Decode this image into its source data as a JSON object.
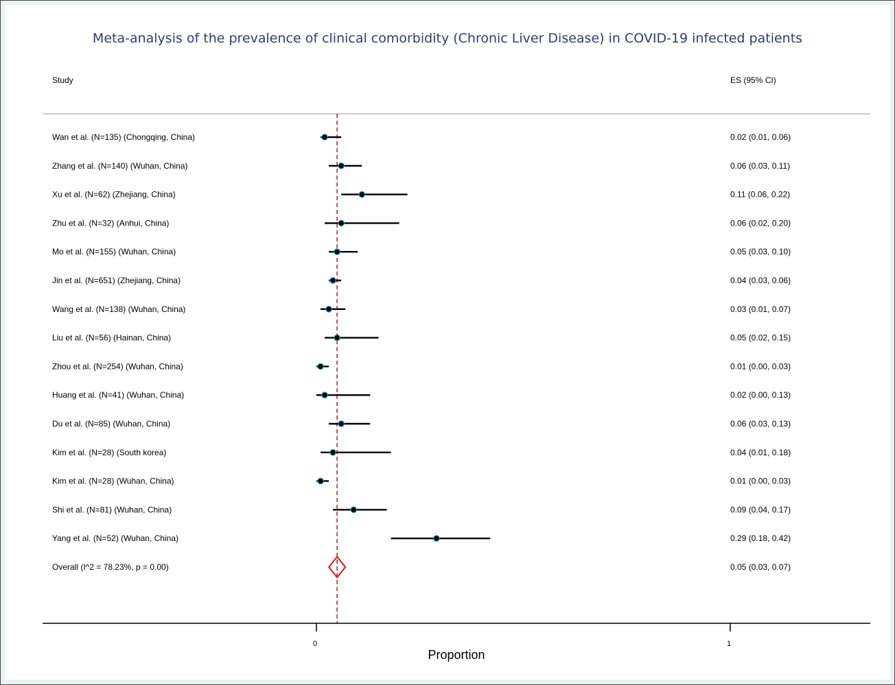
{
  "chart_data": {
    "type": "forest",
    "title": "Meta-analysis of the prevalence of clinical comorbidity (Chronic Liver Disease) in COVID-19 infected patients",
    "study_header": "Study",
    "es_header": "ES (95% CI)",
    "xlabel": "Proportion",
    "xlim": [
      0,
      1
    ],
    "xticks": [
      {
        "value": 0,
        "label": "0"
      },
      {
        "value": 1,
        "label": "1"
      }
    ],
    "reference_line": 0.05,
    "studies": [
      {
        "label": "Wan et al. (N=135) (Chongqing, China)",
        "es": 0.02,
        "lo": 0.01,
        "hi": 0.06,
        "text": "0.02 (0.01, 0.06)"
      },
      {
        "label": "Zhang et al. (N=140) (Wuhan, China)",
        "es": 0.06,
        "lo": 0.03,
        "hi": 0.11,
        "text": "0.06 (0.03, 0.11)"
      },
      {
        "label": "Xu et al. (N=62) (Zhejiang, China)",
        "es": 0.11,
        "lo": 0.06,
        "hi": 0.22,
        "text": "0.11 (0.06, 0.22)"
      },
      {
        "label": "Zhu et al. (N=32) (Anhui, China)",
        "es": 0.06,
        "lo": 0.02,
        "hi": 0.2,
        "text": "0.06 (0.02, 0.20)"
      },
      {
        "label": "Mo et al. (N=155) (Wuhan, China)",
        "es": 0.05,
        "lo": 0.03,
        "hi": 0.1,
        "text": "0.05 (0.03, 0.10)"
      },
      {
        "label": "Jin et al. (N=651) (Zhejiang, China)",
        "es": 0.04,
        "lo": 0.03,
        "hi": 0.06,
        "text": "0.04 (0.03, 0.06)"
      },
      {
        "label": "Wang et al. (N=138) (Wuhan, China)",
        "es": 0.03,
        "lo": 0.01,
        "hi": 0.07,
        "text": "0.03 (0.01, 0.07)"
      },
      {
        "label": "Liu et al. (N=56) (Hainan, China)",
        "es": 0.05,
        "lo": 0.02,
        "hi": 0.15,
        "text": "0.05 (0.02, 0.15)"
      },
      {
        "label": "Zhou et al. (N=254) (Wuhan, China)",
        "es": 0.01,
        "lo": 0.0,
        "hi": 0.03,
        "text": "0.01 (0.00, 0.03)"
      },
      {
        "label": "Huang et al. (N=41) (Wuhan, China)",
        "es": 0.02,
        "lo": 0.0,
        "hi": 0.13,
        "text": "0.02 (0.00, 0.13)"
      },
      {
        "label": "Du et al. (N=85) (Wuhan, China)",
        "es": 0.06,
        "lo": 0.03,
        "hi": 0.13,
        "text": "0.06 (0.03, 0.13)"
      },
      {
        "label": "Kim et al. (N=28) (South korea)",
        "es": 0.04,
        "lo": 0.01,
        "hi": 0.18,
        "text": "0.04 (0.01, 0.18)"
      },
      {
        "label": "Kim et al. (N=28) (Wuhan, China)",
        "es": 0.01,
        "lo": 0.0,
        "hi": 0.03,
        "text": "0.01 (0.00, 0.03)"
      },
      {
        "label": "Shi et al. (N=81) (Wuhan, China)",
        "es": 0.09,
        "lo": 0.04,
        "hi": 0.17,
        "text": "0.09 (0.04, 0.17)"
      },
      {
        "label": "Yang et al. (N=52) (Wuhan, China)",
        "es": 0.29,
        "lo": 0.18,
        "hi": 0.42,
        "text": "0.29 (0.18, 0.42)"
      }
    ],
    "overall": {
      "label": "Overall  (I^2 = 78.23%, p = 0.00)",
      "es": 0.05,
      "lo": 0.03,
      "hi": 0.07,
      "text": "0.05 (0.03, 0.07)"
    },
    "colors": {
      "title": "#2e3e6e",
      "point": "#000000",
      "point_outline": "#1f9bb0",
      "ci": "#000000",
      "reference_line": "#a5333a",
      "overall_diamond": "#e8161b",
      "frame_background": "#eaf2f3"
    }
  }
}
